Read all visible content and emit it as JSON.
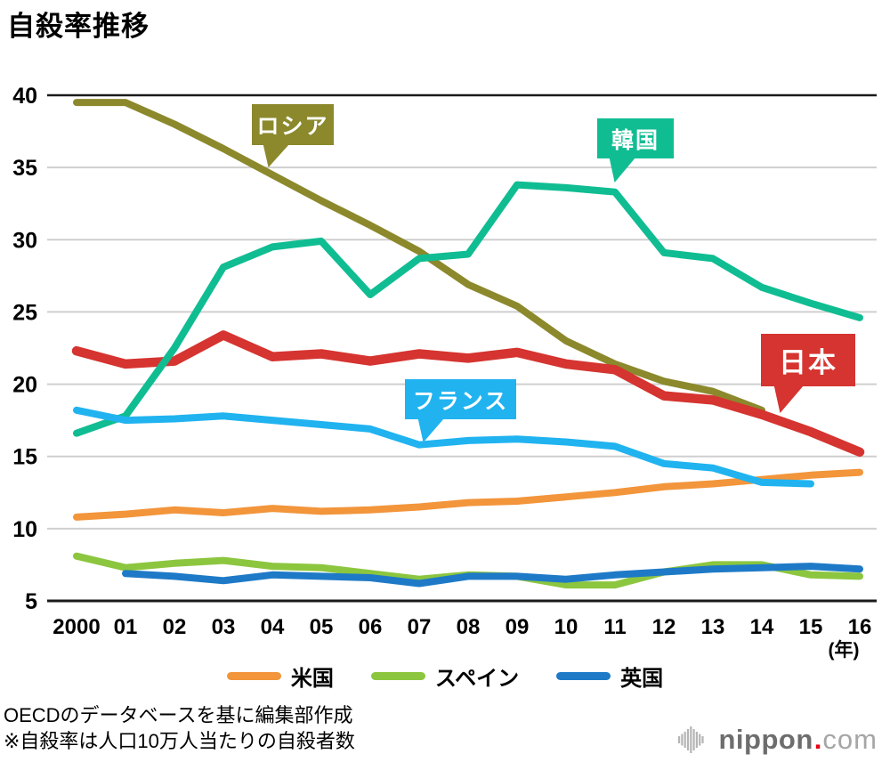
{
  "title": "自殺率推移",
  "notes": {
    "source": "OECDのデータベースを基に編集部作成",
    "definition": "※自殺率は人口10万人当たりの自殺者数"
  },
  "logo": {
    "bold": "nippon",
    "dot": ".",
    "light": "com"
  },
  "chart_data": {
    "type": "line",
    "x": [
      2000,
      2001,
      2002,
      2003,
      2004,
      2005,
      2006,
      2007,
      2008,
      2009,
      2010,
      2011,
      2012,
      2013,
      2014,
      2015,
      2016
    ],
    "x_tick_labels": [
      "2000",
      "01",
      "02",
      "03",
      "04",
      "05",
      "06",
      "07",
      "08",
      "09",
      "10",
      "11",
      "12",
      "13",
      "14",
      "15",
      "16"
    ],
    "x_axis_unit": "(年)",
    "y_ticks": [
      40,
      35,
      30,
      25,
      20,
      15,
      10,
      5
    ],
    "ylim": [
      5,
      40
    ],
    "grid": true,
    "legend_position": "bottom",
    "series": [
      {
        "key": "russia",
        "name": "ロシア",
        "color": "#8b892c",
        "values": [
          39.5,
          39.5,
          38.0,
          36.3,
          34.5,
          32.7,
          31.0,
          29.2,
          26.9,
          25.4,
          23.0,
          21.4,
          20.2,
          19.5,
          18.2,
          null,
          null
        ]
      },
      {
        "key": "japan",
        "name": "日本",
        "color": "#d53430",
        "values": [
          22.3,
          21.4,
          21.6,
          23.4,
          21.9,
          22.1,
          21.6,
          22.1,
          21.8,
          22.2,
          21.4,
          21.0,
          19.2,
          18.9,
          17.9,
          16.7,
          15.3
        ]
      },
      {
        "key": "korea",
        "name": "韓国",
        "color": "#10bd92",
        "values": [
          16.6,
          17.8,
          22.5,
          28.1,
          29.5,
          29.9,
          26.2,
          28.7,
          29.0,
          33.8,
          33.6,
          33.3,
          29.1,
          28.7,
          26.7,
          25.6,
          24.6
        ]
      },
      {
        "key": "us",
        "name": "米国",
        "color": "#f2953b",
        "values": [
          10.8,
          11.0,
          11.3,
          11.1,
          11.4,
          11.2,
          11.3,
          11.5,
          11.8,
          11.9,
          12.2,
          12.5,
          12.9,
          13.1,
          13.4,
          13.7,
          13.9
        ]
      },
      {
        "key": "france",
        "name": "フランス",
        "color": "#20b3f0",
        "values": [
          18.2,
          17.5,
          17.6,
          17.8,
          17.5,
          17.2,
          16.9,
          15.8,
          16.1,
          16.2,
          16.0,
          15.7,
          14.5,
          14.2,
          13.2,
          13.1,
          null
        ]
      },
      {
        "key": "spain",
        "name": "スペイン",
        "color": "#8cc63f",
        "values": [
          8.1,
          7.3,
          7.6,
          7.8,
          7.4,
          7.3,
          6.9,
          6.5,
          6.8,
          6.7,
          6.1,
          6.1,
          7.0,
          7.5,
          7.5,
          6.8,
          6.7
        ]
      },
      {
        "key": "uk",
        "name": "英国",
        "color": "#1e7ac7",
        "values": [
          null,
          6.9,
          6.7,
          6.4,
          6.8,
          6.7,
          6.6,
          6.2,
          6.7,
          6.7,
          6.5,
          6.8,
          7.0,
          7.2,
          7.3,
          7.4,
          7.2
        ]
      }
    ]
  },
  "callouts": [
    {
      "series": "russia",
      "label": "ロシア"
    },
    {
      "series": "korea",
      "label": "韓国"
    },
    {
      "series": "france",
      "label": "フランス"
    },
    {
      "series": "japan",
      "label": "日本"
    }
  ],
  "legend": [
    {
      "series": "us",
      "label": "米国"
    },
    {
      "series": "spain",
      "label": "スペイン"
    },
    {
      "series": "uk",
      "label": "英国"
    }
  ]
}
